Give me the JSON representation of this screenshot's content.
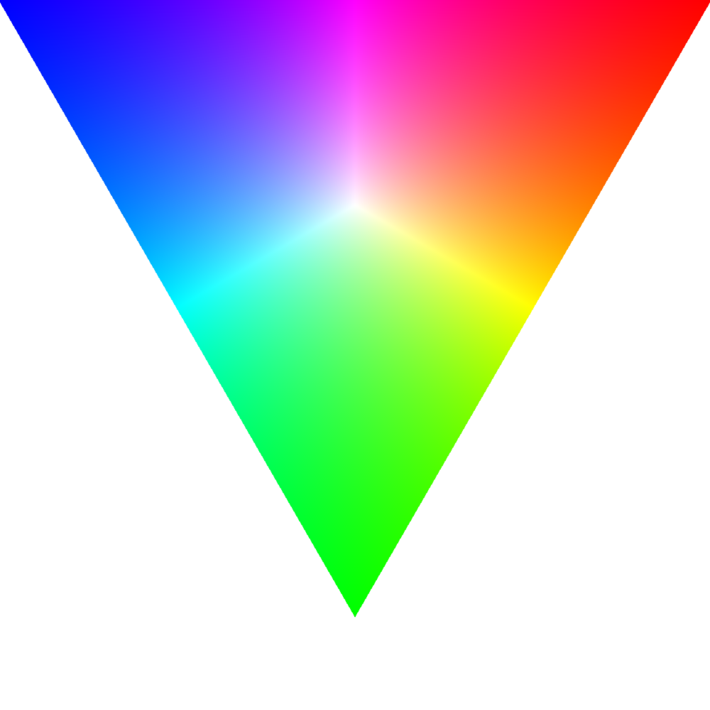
{
  "image": {
    "background_color": "#ffffff",
    "subject": "rgb-color-triangle",
    "vertices": [
      {
        "name": "blue-vertex",
        "color": "#0000ff"
      },
      {
        "name": "red-vertex",
        "color": "#ff0000"
      },
      {
        "name": "green-vertex",
        "color": "#00ff00"
      }
    ],
    "center_color": "#ffffff",
    "edge_midpoint_colors": {
      "top": "#ff00ff",
      "right": "#ffff00",
      "left": "#00ffff"
    }
  }
}
